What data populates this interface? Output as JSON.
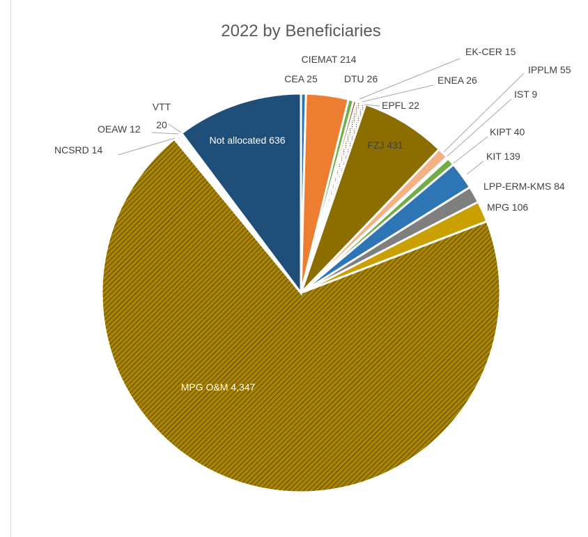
{
  "chart_data": {
    "type": "pie",
    "title": "2022 by Beneficiaries",
    "slices": [
      {
        "name": "CEA",
        "value": 25,
        "label": "CEA 25",
        "color": "#2e75b6",
        "pattern": "none",
        "text_color": "#404040"
      },
      {
        "name": "CIEMAT",
        "value": 214,
        "label": "CIEMAT 214",
        "color": "#ed7d31",
        "pattern": "none",
        "text_color": "#404040"
      },
      {
        "name": "DTU",
        "value": 26,
        "label": "DTU 26",
        "color": "#70ad47",
        "pattern": "none",
        "text_color": "#404040"
      },
      {
        "name": "EK-CER",
        "value": 15,
        "label": "EK-CER 15",
        "color": "#843c0c",
        "pattern": "none",
        "text_color": "#404040"
      },
      {
        "name": "ENEA",
        "value": 26,
        "label": "ENEA 26",
        "color": "#ffffff",
        "pattern": "dots",
        "text_color": "#404040"
      },
      {
        "name": "EPFL",
        "value": 22,
        "label": "EPFL 22",
        "color": "#ffffff",
        "pattern": "dots",
        "text_color": "#404040"
      },
      {
        "name": "FZJ",
        "value": 431,
        "label": "FZJ 431",
        "color": "#8c6d00",
        "pattern": "none",
        "text_color": "#404040"
      },
      {
        "name": "IPPLM",
        "value": 55,
        "label": "IPPLM 55",
        "color": "#f4b183",
        "pattern": "none",
        "text_color": "#404040"
      },
      {
        "name": "IST",
        "value": 9,
        "label": "IST 9",
        "color": "#a9d18e",
        "pattern": "none",
        "text_color": "#404040"
      },
      {
        "name": "KIPT",
        "value": 40,
        "label": "KIPT 40",
        "color": "#70ad47",
        "pattern": "none",
        "text_color": "#404040"
      },
      {
        "name": "KIT",
        "value": 139,
        "label": "KIT 139",
        "color": "#2e75b6",
        "pattern": "none",
        "text_color": "#404040"
      },
      {
        "name": "LPP-ERM-KMS",
        "value": 84,
        "label": "LPP-ERM-KMS 84",
        "color": "#7f7f7f",
        "pattern": "none",
        "text_color": "#404040"
      },
      {
        "name": "MPG",
        "value": 106,
        "label": "MPG 106",
        "color": "#c9a000",
        "pattern": "none",
        "text_color": "#404040"
      },
      {
        "name": "MPG O&M",
        "value": 4347,
        "label": "MPG O&M 4,347",
        "color": "#a88400",
        "pattern": "hatch",
        "text_color": "#ffffff"
      },
      {
        "name": "NCSRD",
        "value": 14,
        "label": "NCSRD 14",
        "color": "#ffffff",
        "pattern": "none",
        "text_color": "#404040"
      },
      {
        "name": "OEAW",
        "value": 12,
        "label": "OEAW 12",
        "color": "#a9d18e",
        "pattern": "none",
        "text_color": "#404040"
      },
      {
        "name": "VTT",
        "value": 20,
        "label": "VTT 20",
        "color": "#ffffff",
        "pattern": "none",
        "text_color": "#404040"
      },
      {
        "name": "Not allocated",
        "value": 636,
        "label": "Not allocated 636",
        "color": "#1f4e79",
        "pattern": "none",
        "text_color": "#ffffff"
      }
    ],
    "legend": "none",
    "label_style": "category name and value"
  }
}
